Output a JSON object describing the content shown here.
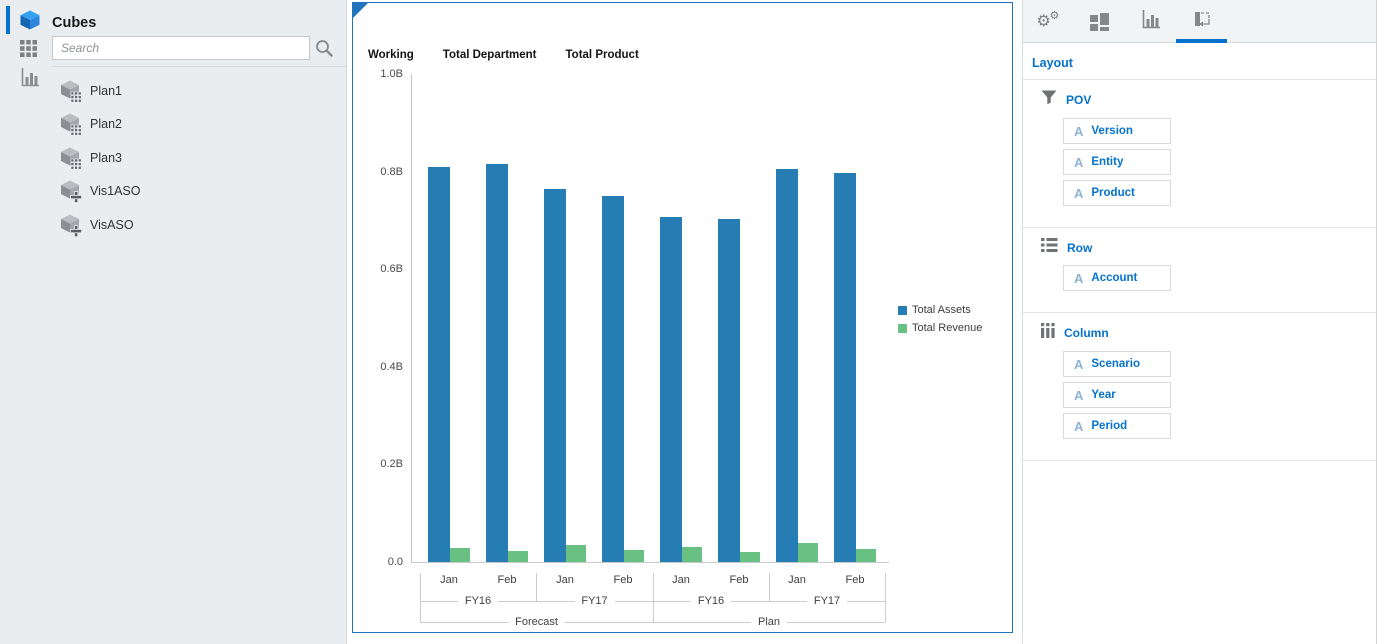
{
  "colors": {
    "accent": "#0572ce",
    "selection_border": "#2273bd",
    "panel_bg": "#e9edf0",
    "bar_blue": "#267db3",
    "bar_green": "#68c182"
  },
  "left_panel": {
    "title": "Cubes",
    "search_placeholder": "Search",
    "cubes": [
      {
        "name": "Plan1",
        "type": "plan"
      },
      {
        "name": "Plan2",
        "type": "plan"
      },
      {
        "name": "Plan3",
        "type": "plan"
      },
      {
        "name": "Vis1ASO",
        "type": "aso"
      },
      {
        "name": "VisASO",
        "type": "aso"
      }
    ]
  },
  "chart_panel": {
    "pov_labels": [
      "Working",
      "Total Department",
      "Total Product"
    ]
  },
  "chart_data": {
    "type": "bar",
    "title": "",
    "unit": "B",
    "ylim": [
      0,
      1.0
    ],
    "grid": "off",
    "legend_position": "right",
    "y_ticks": [
      {
        "label": "1.0B",
        "value": 1.0
      },
      {
        "label": "0.8B",
        "value": 0.8
      },
      {
        "label": "0.6B",
        "value": 0.6
      },
      {
        "label": "0.4B",
        "value": 0.4
      },
      {
        "label": "0.2B",
        "value": 0.2
      },
      {
        "label": "0.0",
        "value": 0.0
      }
    ],
    "x_hierarchy": [
      {
        "scenario": "Forecast",
        "years": [
          {
            "year": "FY16",
            "periods": [
              "Jan",
              "Feb"
            ]
          },
          {
            "year": "FY17",
            "periods": [
              "Jan",
              "Feb"
            ]
          }
        ]
      },
      {
        "scenario": "Plan",
        "years": [
          {
            "year": "FY16",
            "periods": [
              "Jan",
              "Feb"
            ]
          },
          {
            "year": "FY17",
            "periods": [
              "Jan",
              "Feb"
            ]
          }
        ]
      }
    ],
    "series": [
      {
        "name": "Total Assets",
        "color": "#267db3",
        "values": [
          0.81,
          0.816,
          0.764,
          0.751,
          0.706,
          0.702,
          0.805,
          0.797
        ]
      },
      {
        "name": "Total Revenue",
        "color": "#68c182",
        "values": [
          0.028,
          0.022,
          0.034,
          0.025,
          0.03,
          0.021,
          0.038,
          0.026
        ]
      }
    ]
  },
  "right_panel": {
    "heading": "Layout",
    "item_type_letter": "A",
    "tabs": [
      {
        "name": "settings",
        "icon": "gears-icon",
        "selected": false
      },
      {
        "name": "views",
        "icon": "blocks-icon",
        "selected": false
      },
      {
        "name": "chart-type",
        "icon": "bar-chart-icon",
        "selected": false
      },
      {
        "name": "layout",
        "icon": "layout-icon",
        "selected": true
      }
    ],
    "sections": [
      {
        "label": "POV",
        "icon": "funnel-icon",
        "items": [
          "Version",
          "Entity",
          "Product"
        ]
      },
      {
        "label": "Row",
        "icon": "list-icon",
        "items": [
          "Account"
        ]
      },
      {
        "label": "Column",
        "icon": "columns-icon",
        "items": [
          "Scenario",
          "Year",
          "Period"
        ]
      }
    ]
  }
}
